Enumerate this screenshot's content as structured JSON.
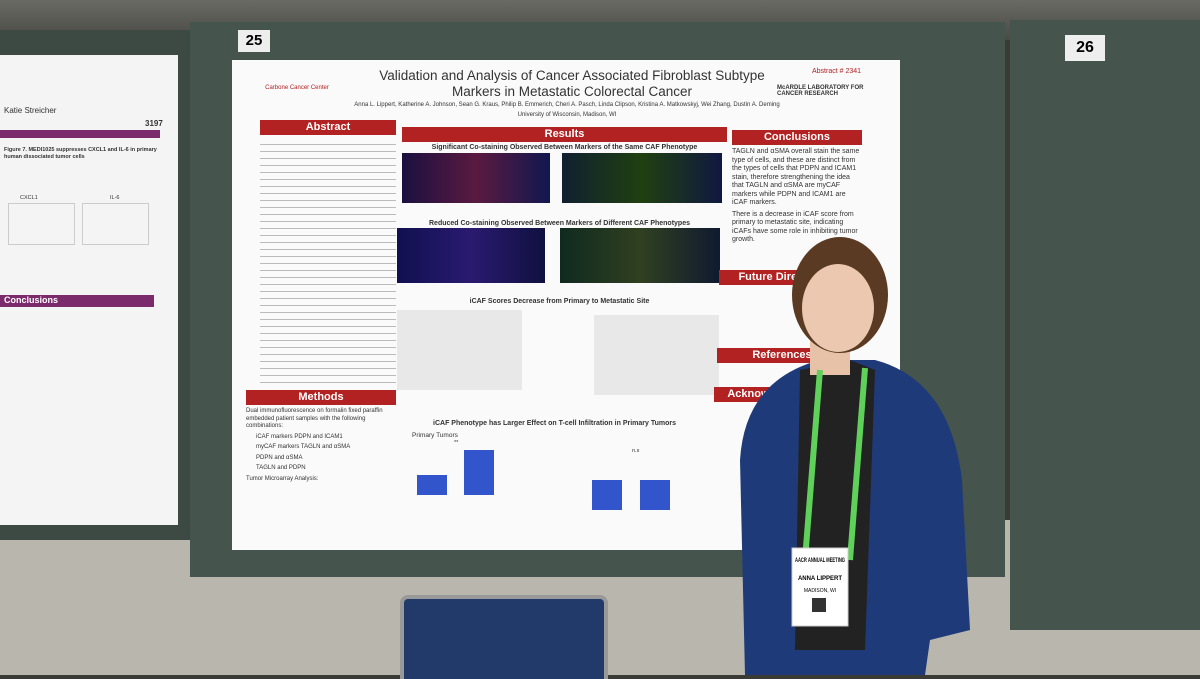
{
  "boards": {
    "left": "25",
    "right": "26"
  },
  "left_poster": {
    "author": "Katie Streicher",
    "number": "3197",
    "figure_caption": "Figure 7. MEDI1025 suppresses CXCL1 and IL-6 in primary human dissociated tumor cells",
    "chart_labels": [
      "CXCL1",
      "IL-6"
    ],
    "conclusions_header": "Conclusions"
  },
  "poster": {
    "title": "Validation and Analysis of Cancer Associated Fibroblast Subtype Markers in Metastatic Colorectal Cancer",
    "abstract_number": "Abstract # 2341",
    "left_logo": "Carbone Cancer Center",
    "right_logo": "McARDLE LABORATORY FOR CANCER RESEARCH",
    "authors": "Anna L. Lippert, Katherine A. Johnson, Sean G. Kraus, Philip B. Emmerich, Cheri A. Pasch, Linda Clipson, Kristina A. Matkowskyj, Wei Zhang, Dustin A. Deming",
    "affiliation": "University of Wisconsin, Madison, WI",
    "sections": {
      "abstract": "Abstract",
      "results": "Results",
      "conclusions": "Conclusions",
      "methods": "Methods",
      "future": "Future Directions",
      "references": "References",
      "acknowledgements": "Acknowledgements"
    },
    "results_subtitles": [
      "Significant Co-staining Observed Between Markers of the Same CAF Phenotype",
      "Reduced Co-staining Observed Between Markers of Different CAF Phenotypes",
      "iCAF Scores Decrease from Primary to Metastatic Site",
      "iCAF Phenotype has Larger Effect on T-cell Infiltration in Primary Tumors"
    ],
    "bar_chart_title": "Primary Tumors",
    "significance": [
      "**",
      "n.s"
    ],
    "conclusions": [
      "TAGLN and αSMA overall stain the same type of cells, and these are distinct from the types of cells that PDPN and ICAM1 stain, therefore strengthening the idea that TAGLN and αSMA are myCAF markers while PDPN and ICAM1 are iCAF markers.",
      "There is a decrease in iCAF score from primary to metastatic site, indicating iCAFs have some role in inhibiting tumor growth."
    ],
    "methods": [
      "Dual immunofluorescence on formalin fixed paraffin embedded patient samples with the following combinations:",
      "iCAF markers PDPN and ICAM1",
      "myCAF markers TAGLN and αSMA",
      "PDPN and αSMA",
      "TAGLN and PDPN",
      "Tumor Microarray Analysis:"
    ]
  },
  "badge": {
    "meeting": "AACR ANNUAL MEETING",
    "name": "ANNA LIPPERT",
    "location": "MADISON, WI"
  }
}
